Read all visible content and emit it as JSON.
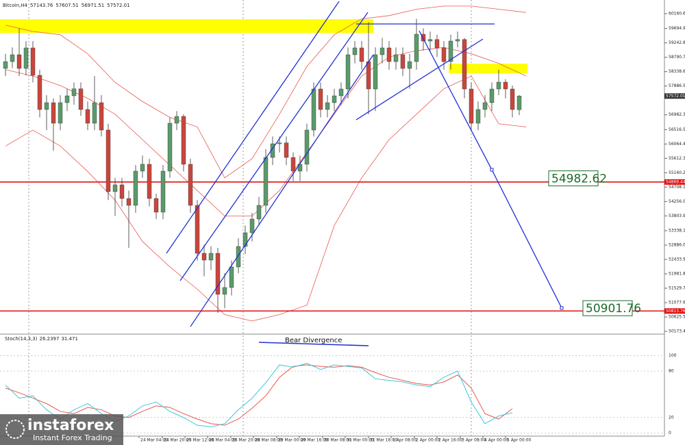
{
  "chart_data": {
    "type": "candlestick",
    "symbol": "Bitcoin,H4",
    "ylim": [
      50109,
      60591
    ],
    "yticks": [
      {
        "value": 60160.6,
        "label": "60160.60"
      },
      {
        "value": 59694.9,
        "label": "59694.90"
      },
      {
        "value": 59242.8,
        "label": "59242.80"
      },
      {
        "value": 58790.7,
        "label": "58790.70"
      },
      {
        "value": 58338.6,
        "label": "58338.60"
      },
      {
        "value": 57886.5,
        "label": "57886.50"
      },
      {
        "value": 56982.3,
        "label": "56982.30"
      },
      {
        "value": 56516.5,
        "label": "56516.50"
      },
      {
        "value": 56064.4,
        "label": "56064.40"
      },
      {
        "value": 55612.3,
        "label": "55612.30"
      },
      {
        "value": 55160.2,
        "label": "55160.20"
      },
      {
        "value": 54708.1,
        "label": "54708.10"
      },
      {
        "value": 54256,
        "label": "54256.00"
      },
      {
        "value": 53803.9,
        "label": "53803.90"
      },
      {
        "value": 53338.1,
        "label": "53338.10"
      },
      {
        "value": 52886,
        "label": "52886.00"
      },
      {
        "value": 52433.9,
        "label": "52433.90"
      },
      {
        "value": 51981.8,
        "label": "51981.80"
      },
      {
        "value": 51529.7,
        "label": "51529.70"
      },
      {
        "value": 51077.6,
        "label": "51077.60"
      },
      {
        "value": 50625.5,
        "label": "50625.50"
      },
      {
        "value": 50173.4,
        "label": "50173.40"
      }
    ],
    "xticks": [
      {
        "value": 19.5,
        "label": "24 Mar 04:00"
      },
      {
        "value": 22.9,
        "label": "24 Mar 20:00"
      },
      {
        "value": 26.2,
        "label": "25 Mar 12:00"
      },
      {
        "value": 29.5,
        "label": "26 Mar 04:00"
      },
      {
        "value": 32.9,
        "label": "26 Mar 20:00"
      },
      {
        "value": 36.2,
        "label": "28 Mar 08:00"
      },
      {
        "value": 39.6,
        "label": "29 Mar 00:00"
      },
      {
        "value": 42.9,
        "label": "29 Mar 16:00"
      },
      {
        "value": 46.3,
        "label": "30 Mar 08:00"
      },
      {
        "value": 49.6,
        "label": "31 Mar 00:00"
      },
      {
        "value": 53,
        "label": "31 Mar 16:00"
      },
      {
        "value": 56.3,
        "label": "1 Apr 08:00"
      },
      {
        "value": 59.7,
        "label": "2 Apr 00:00"
      },
      {
        "value": 63,
        "label": "2 Apr 16:00"
      },
      {
        "value": 66.4,
        "label": "3 Apr 08:00"
      },
      {
        "value": 69.7,
        "label": "4 Apr 00:00"
      },
      {
        "value": 73,
        "label": "5 Apr 00:00"
      }
    ],
    "up_color": "#5a9a6a",
    "down_color": "#c9463d",
    "ohlc": [
      [
        58440,
        58900,
        58200,
        58654
      ],
      [
        58654,
        59100,
        58450,
        58870
      ],
      [
        58870,
        59700,
        58200,
        58440
      ],
      [
        58440,
        59300,
        58220,
        59085
      ],
      [
        59085,
        59300,
        58000,
        58224
      ],
      [
        58224,
        58400,
        56900,
        57148
      ],
      [
        57148,
        57600,
        56500,
        57363
      ],
      [
        57363,
        57500,
        55850,
        56717
      ],
      [
        56717,
        57600,
        56500,
        57363
      ],
      [
        57363,
        57800,
        57100,
        57578
      ],
      [
        57578,
        58000,
        57300,
        57800
      ],
      [
        57800,
        58000,
        56950,
        57148
      ],
      [
        57148,
        57400,
        56500,
        56717
      ],
      [
        56717,
        58200,
        56500,
        57363
      ],
      [
        57363,
        57600,
        56300,
        56502
      ],
      [
        56502,
        56700,
        54300,
        54565
      ],
      [
        54565,
        55000,
        53800,
        54780
      ],
      [
        54780,
        55000,
        54100,
        54350
      ],
      [
        54350,
        54600,
        52800,
        54135
      ],
      [
        54135,
        55400,
        53900,
        55211
      ],
      [
        55211,
        55700,
        55000,
        55426
      ],
      [
        55426,
        55600,
        54100,
        54350
      ],
      [
        54350,
        54500,
        53700,
        53920
      ],
      [
        53920,
        55400,
        53700,
        55211
      ],
      [
        55211,
        56900,
        55000,
        56717
      ],
      [
        56717,
        57100,
        56500,
        56932
      ],
      [
        56932,
        57000,
        55200,
        55426
      ],
      [
        55426,
        55600,
        53900,
        54135
      ],
      [
        54135,
        54300,
        52400,
        52628
      ],
      [
        52628,
        52900,
        51900,
        52413
      ],
      [
        52413,
        52850,
        52100,
        52628
      ],
      [
        52628,
        52800,
        50750,
        51337
      ],
      [
        51337,
        52000,
        50900,
        51552
      ],
      [
        51552,
        52400,
        51300,
        52198
      ],
      [
        52198,
        53100,
        52000,
        52843
      ],
      [
        52843,
        53500,
        52600,
        53274
      ],
      [
        53274,
        53900,
        53000,
        53704
      ],
      [
        53704,
        54400,
        53500,
        54135
      ],
      [
        54135,
        55900,
        53900,
        55641
      ],
      [
        55641,
        56300,
        55400,
        56071
      ],
      [
        56071,
        56300,
        55800,
        56100
      ],
      [
        56100,
        56300,
        55400,
        55641
      ],
      [
        55641,
        55800,
        54900,
        55211
      ],
      [
        55211,
        55700,
        54900,
        55426
      ],
      [
        55426,
        56700,
        55200,
        56502
      ],
      [
        56502,
        58000,
        56300,
        57793
      ],
      [
        57793,
        58000,
        56900,
        57148
      ],
      [
        57148,
        57600,
        56900,
        57363
      ],
      [
        57363,
        57800,
        57100,
        57578
      ],
      [
        57578,
        58000,
        57300,
        57793
      ],
      [
        57793,
        59100,
        57500,
        58870
      ],
      [
        58870,
        59300,
        58600,
        59085
      ],
      [
        59085,
        59300,
        58400,
        58654
      ],
      [
        58654,
        59900,
        57000,
        57793
      ],
      [
        57793,
        59100,
        57100,
        58870
      ],
      [
        58870,
        59400,
        58600,
        59085
      ],
      [
        59085,
        59300,
        58400,
        58654
      ],
      [
        58654,
        59100,
        58400,
        58870
      ],
      [
        58870,
        59100,
        58200,
        58439
      ],
      [
        58439,
        58900,
        57800,
        58654
      ],
      [
        58654,
        60000,
        58400,
        59515
      ],
      [
        59515,
        59700,
        59000,
        59300
      ],
      [
        59300,
        59600,
        59000,
        59350
      ],
      [
        59350,
        59500,
        58800,
        59085
      ],
      [
        59085,
        59300,
        58400,
        58654
      ],
      [
        58654,
        59500,
        58400,
        59300
      ],
      [
        59300,
        59600,
        59100,
        59350
      ],
      [
        59350,
        59400,
        57500,
        57793
      ],
      [
        57793,
        58000,
        56500,
        56717
      ],
      [
        56717,
        57400,
        56500,
        57148
      ],
      [
        57148,
        57600,
        56900,
        57363
      ],
      [
        57363,
        58000,
        57100,
        57793
      ],
      [
        57793,
        58400,
        57600,
        58008
      ],
      [
        58008,
        58100,
        57500,
        57793
      ],
      [
        57793,
        57900,
        56900,
        57148
      ],
      [
        57143.76,
        57607.51,
        56971.51,
        57572.01
      ]
    ],
    "bands": {
      "color": "#e8574d",
      "step": 4,
      "upper": [
        59800,
        59600,
        59500,
        58900,
        58000,
        57400,
        56900,
        56600,
        55000,
        55600,
        57000,
        58500,
        59500,
        60000,
        60100,
        60300,
        60400,
        60400,
        60300,
        60200
      ],
      "middle": [
        58400,
        58200,
        57900,
        57500,
        57000,
        56200,
        55400,
        54600,
        53800,
        53800,
        54600,
        55800,
        57000,
        58200,
        58800,
        59000,
        59100,
        58900,
        58600,
        58200
      ],
      "lower": [
        56000,
        56500,
        56000,
        55200,
        54300,
        53000,
        52200,
        51500,
        50700,
        50500,
        50700,
        51000,
        53500,
        55000,
        56200,
        57000,
        57800,
        58200,
        56700,
        56600
      ]
    },
    "zones": [
      {
        "x": [
          -0.8,
          53.7
        ],
        "y": [
          59558,
          59988
        ]
      },
      {
        "x": [
          64.7,
          76.2
        ],
        "y": [
          58288,
          58590
        ]
      }
    ],
    "zone_color": "#ffff00",
    "trendlines": [
      {
        "x": [
          23.5,
          48.7
        ],
        "y": [
          52628,
          60548
        ]
      },
      {
        "x": [
          25.5,
          52.9
        ],
        "y": [
          51767,
          60204
        ]
      },
      {
        "x": [
          27,
          53.7
        ],
        "y": [
          50323,
          58870
        ]
      },
      {
        "x": [
          51.2,
          69.7
        ],
        "y": [
          56825,
          59364
        ]
      },
      {
        "x": [
          51.2,
          71.4
        ],
        "y": [
          59838,
          59838
        ]
      }
    ],
    "projection": {
      "x": [
        60.4,
        71,
        81.2
      ],
      "y": [
        59622,
        55254,
        50907
      ]
    },
    "line_color": "#1f2fd6",
    "levels": [
      {
        "value": 54869.44,
        "label": "54869.44"
      },
      {
        "value": 50813.76,
        "label": "50813.76"
      }
    ],
    "level_color": "#e01010",
    "targets": [
      {
        "x": 79.5,
        "value": 54982.62
      },
      {
        "x": 84.5,
        "value": 50901.76
      }
    ],
    "current": {
      "value": 57572.01,
      "label": "57572.01"
    },
    "stoch": {
      "name": "Stoch(14,3,3)",
      "step": 2,
      "ylim": [
        -4,
        126
      ],
      "yticks": [
        100,
        80,
        20,
        0
      ],
      "main": [
        62,
        45,
        48,
        30,
        18,
        30,
        38,
        25,
        15,
        22,
        35,
        40,
        28,
        20,
        10,
        8,
        12,
        30,
        45,
        65,
        88,
        85,
        90,
        82,
        88,
        86,
        84,
        70,
        68,
        66,
        62,
        60,
        72,
        80,
        40,
        12,
        22,
        26.2397
      ],
      "signal": [
        58,
        52,
        45,
        38,
        28,
        25,
        33,
        30,
        22,
        20,
        28,
        35,
        33,
        25,
        18,
        12,
        10,
        18,
        32,
        48,
        72,
        86,
        88,
        86,
        85,
        87,
        85,
        78,
        72,
        68,
        64,
        62,
        66,
        75,
        58,
        25,
        18,
        31.471
      ],
      "main_color": "#3cc8d8",
      "signal_color": "#e8574d",
      "annotation": "Bear Divergence"
    },
    "logo": {
      "name": "instaforex",
      "tagline": "Instant Forex Trading"
    }
  }
}
